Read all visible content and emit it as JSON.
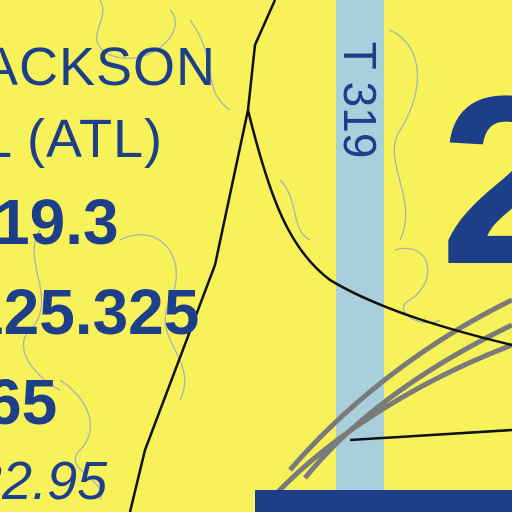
{
  "airport": {
    "name": "ACKSON",
    "code": "L (ATL)",
    "frequencies": [
      "19.3",
      "125.325",
      "65",
      "22.95"
    ]
  },
  "route": {
    "label": "T 319"
  },
  "large_numeral": "2",
  "colors": {
    "background": "#f7f25a",
    "label_text": "#1d3f8a",
    "route_band": "#a9cfdc",
    "contour": "#8f9fd0",
    "runway": "#7a7a7a",
    "line": "#111111"
  }
}
